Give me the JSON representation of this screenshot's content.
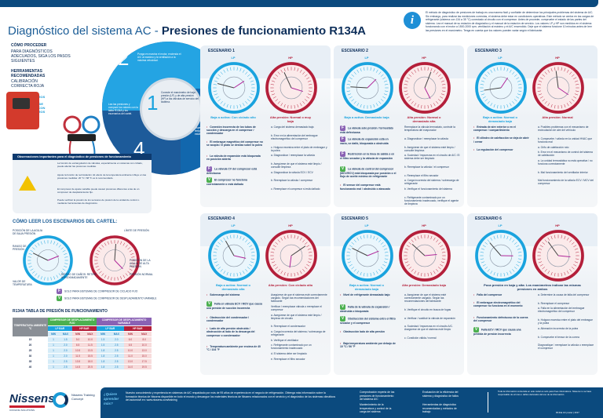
{
  "header": {
    "title_light": "Diagnóstico del sistema AC - ",
    "title_bold": "Presiones de funcionamiento R134A",
    "info_icon": "info-icon",
    "intro": "El método de diagnóstico de presiones de trabajo es una manera fácil y confiable de determinar los principales problemas del sistema de A/C. Sin embargo, para realizar las mediciones correctas, el sistema debe estar en condiciones operativas. Este método se centra en las cargas de refrigerante (sistema con 134 a 35 °C) conectado al circuito con el compresor. Antes de proceder, compruebe el estado de las partes del sistema. Lea el manual de su estación de diagnóstico y el manual de la estación de servicio. Los valores LP y HP son medidos en el sistema funcionando con el motor a 1500-2000 rpm, ventilación al máximo y el A/C encendido. Deje que el sistema funcione 10 minutos antes de leer las presiones en el manómetro. Tenga en cuenta que los valores pueden variar según el fabricante."
  },
  "left": {
    "how_title": "CÓMO PROCEDER",
    "how_sub": "PARA DIAGNÓSTICOS ADECUADOS, SIGA LOS PASOS SIGUIENTES",
    "tools_title": "HERRAMIENTAS RECOMENDADAS",
    "tools_sub": "CALIBRACIÓN CORRECTA ROJA",
    "tool1": "JUEGO DE MANÓMETROS",
    "tool2": "ESTACIÓN DE LLENADO CON MANÓMETROS",
    "steps": [
      {
        "n": "1",
        "text": "Conecte el manómetro de baja presión (LP) y de alta presión (HP) a las válvulas de servicio del sistema."
      },
      {
        "n": "2",
        "text": "Ponga en marcha el motor, encienda el A/C al máximo y la ventilación a la máxima velocidad."
      },
      {
        "n": "3",
        "text": "Espere hasta que la temperatura y la presión se estabilicen."
      },
      {
        "n": "4",
        "text": "Lea las presiones y compare los valores con la tabla R134A y los escenarios del cartel."
      }
    ]
  },
  "obs": {
    "title": "Observaciones importantes para el diagnóstico de presiones de funcionamiento",
    "items": [
      "La función de estrangulación de válvulas, especialmente en sistemas con ciclado, puede afectar las presiones medidas.",
      "Ajuste la función de recirculación. El efecto de la temperatura ambiente influye en las presiones medidas: 20 °C / 68 °F es lo recomendado.",
      "El compresor de ajuste variable puede causar presiones diferentes a las de un compresor de desplazamiento fijo.",
      "Puede verificar la presión de los sensores de presión de la unidad de control o mediante herramientas de diagnóstico."
    ]
  },
  "how_read": {
    "title": "CÓMO LEER LOS ESCENARIOS DEL CARTEL:",
    "lp": "LP",
    "hp": "HP",
    "callouts": [
      "POSICIÓN DE LA AGUJA DE BAJA PRESIÓN",
      "RANGO DE PRESIÓN",
      "LÍMITE DE PRESIÓN",
      "VALOR DE TEMPERATURA",
      "POSICIÓN DE LA AGUJA DE ALTA PRESIÓN",
      "PRESIÓN NORMAL"
    ],
    "warn": "RIESGO DE DAÑOS: RETIRE APROXIMADAMENTE",
    "legend_f": "SOLO PARA SISTEMAS DE COMPRESOR DE CICLADO FIJO",
    "legend_v": "SOLO PARA SISTEMAS DE COMPRESOR DE DESPLAZAMIENTO VARIABLE"
  },
  "table": {
    "title": "R134A TABLA DE PRESIÓN DE FUNCIONAMIENTO",
    "col_temp": "TEMPERATURA AMBIENTE °C",
    "group1": "COMPRESOR DE DESPLAZAMIENTO FIJO",
    "group2": "COMPRESOR DE DESPLAZAMIENTO VARIABLE",
    "unit": "BAR",
    "sub": [
      "LP BAR",
      "HP BAR",
      "LP BAR",
      "HP BAR"
    ],
    "minmax": [
      "MIN",
      "MAX"
    ],
    "rows": [
      [
        "15",
        "1",
        "1.5",
        "5.0",
        "10.0",
        "1.5",
        "2.0",
        "6.0",
        "8.0"
      ],
      [
        "20",
        "1",
        "2.0",
        "6.5",
        "11.5",
        "1.5",
        "2.5",
        "6.5",
        "10.0"
      ],
      [
        "25",
        "1",
        "2.0",
        "10.5",
        "13.5",
        "1.8",
        "2.5",
        "10.0",
        "13.0"
      ],
      [
        "30",
        "1",
        "2.0",
        "11.5",
        "15.5",
        "1.8",
        "2.5",
        "11.0",
        "15.0"
      ],
      [
        "35",
        "1",
        "2.5",
        "13.5",
        "18.0",
        "1.8",
        "2.5",
        "13.0",
        "17.5"
      ],
      [
        "40",
        "1",
        "2.5",
        "14.5",
        "20.5",
        "1.8",
        "2.5",
        "14.0",
        "19.5"
      ]
    ]
  },
  "scenarios": [
    {
      "title": "ESCENARIO 1",
      "lp": "LP",
      "hp": "HP",
      "lp_label": "Baja a activa: Con ciclado alto",
      "hp_label": "Alta presión: Normal o muy baja",
      "causes": [
        [
          "",
          "Conexión incorrecta de los tubos de succión y descarga en el compresor / condensador"
        ],
        [
          "",
          "El embrague magnético del compresor no se acopla / el plato se desliza sobre la polea"
        ],
        [
          "",
          "La válvula de expansión está bloqueada en posición abierta"
        ],
        [
          "F",
          "La válvula CV del compresor está defectuosa"
        ],
        [
          "V",
          "El compresor no funciona correctamente o está dañado"
        ]
      ],
      "actions": [
        "a. Carga del sistema demasiado baja",
        "b. Error en la alimentación del embrague electromagnético del compresor",
        "c. Holgura excesiva entre el plato de embrague y la polea",
        "a. Diagnosticar / reemplazar la válvula",
        "b. Asegúrese de que el sistema esté limpio / consulte limpieza",
        "a. Diagnosticar la válvula ECV / ECV",
        "b. Reemplace la válvula / compresor",
        "c. Reemplace el compresor si está dañado"
      ]
    },
    {
      "title": "ESCENARIO 2",
      "lp": "LP",
      "hp": "HP",
      "lp_label": "Baja a activa: Demasiado baja",
      "hp_label": "Alta presión: Normal o demasiado alta",
      "causes": [
        [
          "F",
          "La válvula solo presión / termostato está defectuosa"
        ],
        [
          "F",
          "La válvula de expansión está en vacío, se dañó, bloqueada o obstruida"
        ],
        [
          "F",
          "Restricción en la línea de salida o en el filtro secador y la válvula de expansión"
        ],
        [
          "V",
          "La válvula de control del compresor (MCV/ECV) está bloqueada por posición o el flujo de aceite mínimo de refrigerante"
        ],
        [
          "",
          "El sensor del compresor está funcionando mal / obstruido o atascado"
        ]
      ],
      "actions": [
        "Reemplace la válvula termostato, controle la temperatura del evaporador",
        "a. Diagnosticar / reemplazar la válvula",
        "b. Asegúrese de que el sistema esté limpio / consulte limpieza",
        "a. Suciedad / impurezas en el circuito de A/C: El sistema debe ser limpiado",
        "b. Reemplace la válvula / el compresor",
        "c. Reemplace el filtro secador",
        "a. Carga incorrecta del sistema / sobrecarga de refrigerante",
        "b. Verifique el funcionamiento del sistema",
        "c. Refrigerante contaminado por un funcionamiento inadecuado, verifique el agente de limpieza"
      ]
    },
    {
      "title": "ESCENARIO 3",
      "lp": "LP",
      "hp": "HP",
      "lp_label": "Baja a activa: Normal o demasiado baja",
      "hp_label": "Alta presión: Normal",
      "causes": [
        [
          "",
          "Entrada de aire exterior o en el compresor / compartimiento"
        ],
        [
          "",
          "El cilindro de calefacción se deja de abrir / cerrar"
        ],
        [
          "",
          "La regulación del compresor"
        ]
      ],
      "actions": [
        "a. Posibles problemas con el mecanismo de recirculación de aire del vehículo",
        "b. Compruebe / válvula en la unidad HVAC que funciona mal",
        "a. Grifo de calefacción roto",
        "b. Error en el mecanismo de control del sistema de calefacción",
        "a. La unidad termostática no está operativa / no funciona correctamente",
        "b. Mal funcionamiento del ventilador interior",
        "Mal funcionamiento de la válvula ECV / MCV del compresor"
      ]
    },
    {
      "title": "ESCENARIO 4",
      "lp": "LP",
      "hp": "HP",
      "lp_label": "Baja a activa: Normal o demasiado alta",
      "hp_label": "Alta presión: Con ciclado alto",
      "causes": [
        [
          "",
          "Sobrecarga del sistema"
        ],
        [
          "V",
          "Falla en válvula ECV / MCV que causa una presión de succión incorrecta"
        ],
        [
          "",
          "Obstrucción del condensador / condensador"
        ],
        [
          "",
          "Lado de alta presión obstruido / obstrucción al lado de la descarga del compresor o condensador"
        ],
        [
          "",
          "Temperatura ambiente por encima de 40 °C / 104 °F"
        ]
      ],
      "actions": [
        "Asegúrese de que el sistema esté correctamente cargado. Según las recomendaciones del fabricante",
        "Verificar / reemplazar válvula o reemplace el compresor",
        "a. Asegúrese de que el sistema esté limpio / limpieza de circuito",
        "b. Reemplace el condensador",
        "a. Carga incorrecta del sistema / sobrecarga de refrigerante",
        "b. Verifique el ventilador",
        "c. Refrigerante contaminado por un funcionamiento inadecuado",
        "d. El sistema debe ser limpiado",
        "e. Reemplace el filtro secador"
      ]
    },
    {
      "title": "ESCENARIO 5",
      "lp": "LP",
      "hp": "HP",
      "lp_label": "Baja a activa: Normal o demasiado baja",
      "hp_label": "Alta presión: Demasiado baja",
      "causes": [
        [
          "",
          "Nivel de refrigerante demasiado bajo"
        ],
        [
          "V",
          "Falla de la válvula de expansión / obstruida o bloqueada"
        ],
        [
          "V",
          "Obstrucción del sistema entre el filtro secador y el compresor"
        ],
        [
          "",
          "Obstrucción lado de alta presión"
        ],
        [
          "",
          "Baja temperatura ambiente por debajo de 10 °C / 50 °F"
        ]
      ],
      "actions": [
        "a. Asegúrese de que el sistema esté correctamente cargado. Según las recomendaciones del fabricante",
        "b. Verifique el circuito en busca de fugas",
        "a. Verificar / sustituir la válvula de expansión",
        "a. Suciedad / impurezas en el circuito A/C. Asegúrese de que el sistema esté limpio",
        "c. Condición válida / normal"
      ]
    },
    {
      "title": "ESCENARIO 6",
      "lp": "LP",
      "hp": "HP",
      "lp_label": "Poca presión en baja y alta: Los manómetros indican las mismas presiones en ambos",
      "hp_label": "",
      "causes": [
        [
          "",
          "Falla del compresor"
        ],
        [
          "",
          "El embrague electromagnético del compresor no funciona en el momento"
        ],
        [
          "",
          "Funcionamiento defectuoso de la correa del compresor"
        ],
        [
          "V",
          "Falla ECV / MCV que causa una pérdida de presión incorrecta"
        ]
      ],
      "actions": [
        "a. Determine la causa de falla del compresor",
        "b. Reemplace el compresor",
        "a. Falla en la alimentación del embrague electromagnético del compresor",
        "b. Holgura excesiva entre el plato del embrague y la polea",
        "a. Alineación incorrecta de la polea",
        "b. Compruebe el tensor de la correa",
        "Diagnostique / reemplace la válvula o reemplace el compresor"
      ]
    }
  ],
  "footer": {
    "brand": "Nissens",
    "brand_tag": "COOLING SOLUTIONS",
    "tc": "Nissens Training Concept",
    "ask": "¿Quiere aprender más?",
    "text": "Nuestro conocimiento y experiencia en sistemas de A/C respaldado por más de 95 años de experiencia en el negocio de refrigeración. Obtenga más información sobre la formación técnica de Nissens disponible en todo el mundo y descargue los materiales técnicos de Nissens relacionados con el servicio y el diagnóstico de los sistemas climáticos del automóvil en: www.nissens.com/training",
    "points": [
      "Comprobación experta de las presiones de funcionamiento del sistema A/C",
      "Mantenimiento de la temperatura y control de la carga del sistema",
      "Evaluación de la eficiencia del sistema y diagnóstico de fallos",
      "Herramientas de diagnóstico recomendadas y métodos de trabajo"
    ],
    "legal": "Toda la información contenida en este cartel es solo para fines informativos. Nissens no se hace responsable de errores o daños derivados del uso de la información.",
    "code": "R134a AC poster | 2017"
  },
  "colors": {
    "lp": "#1aa3de",
    "hp": "#b41f3a",
    "brand": "#0b4a7e",
    "fixed": "#8a62b4",
    "variable": "#4cb050"
  }
}
